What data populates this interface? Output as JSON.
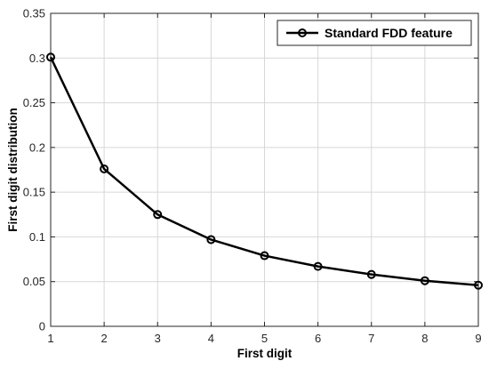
{
  "chart_data": {
    "type": "line",
    "x": [
      1,
      2,
      3,
      4,
      5,
      6,
      7,
      8,
      9
    ],
    "series": [
      {
        "name": "Standard FDD feature",
        "values": [
          0.301,
          0.176,
          0.125,
          0.097,
          0.079,
          0.067,
          0.058,
          0.051,
          0.046
        ],
        "color": "#000000",
        "marker": "circle"
      }
    ],
    "xlabel": "First digit",
    "ylabel": "First digit distribution",
    "xlim": [
      1,
      9
    ],
    "ylim": [
      0,
      0.35
    ],
    "x_ticks": [
      "1",
      "2",
      "3",
      "4",
      "5",
      "6",
      "7",
      "8",
      "9"
    ],
    "y_ticks": [
      "0",
      "0.05",
      "0.1",
      "0.15",
      "0.2",
      "0.25",
      "0.3",
      "0.35"
    ],
    "grid": true,
    "legend_position": "top-right"
  }
}
